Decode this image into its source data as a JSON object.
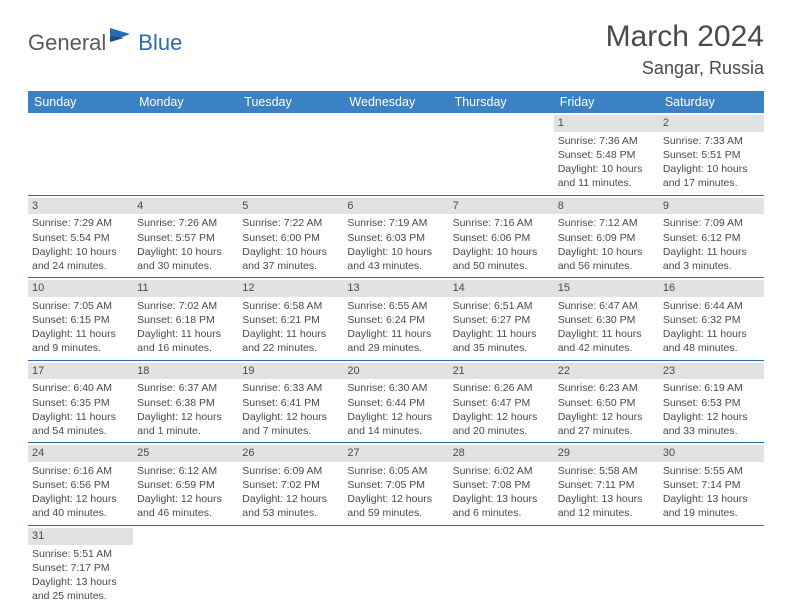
{
  "logo": {
    "general": "General",
    "blue": "Blue"
  },
  "title": "March 2024",
  "location": "Sangar, Russia",
  "colors": {
    "header_bg": "#3b82c4",
    "header_fg": "#ffffff",
    "day_bg": "#e2e2e2",
    "row_border": "#2b6cb0",
    "text": "#4a4a4a",
    "logo_gray": "#5a5a5a",
    "logo_blue": "#2b6cb0"
  },
  "weekdays": [
    "Sunday",
    "Monday",
    "Tuesday",
    "Wednesday",
    "Thursday",
    "Friday",
    "Saturday"
  ],
  "weeks": [
    [
      null,
      null,
      null,
      null,
      null,
      {
        "d": "1",
        "sr": "Sunrise: 7:36 AM",
        "ss": "Sunset: 5:48 PM",
        "dl": "Daylight: 10 hours and 11 minutes."
      },
      {
        "d": "2",
        "sr": "Sunrise: 7:33 AM",
        "ss": "Sunset: 5:51 PM",
        "dl": "Daylight: 10 hours and 17 minutes."
      }
    ],
    [
      {
        "d": "3",
        "sr": "Sunrise: 7:29 AM",
        "ss": "Sunset: 5:54 PM",
        "dl": "Daylight: 10 hours and 24 minutes."
      },
      {
        "d": "4",
        "sr": "Sunrise: 7:26 AM",
        "ss": "Sunset: 5:57 PM",
        "dl": "Daylight: 10 hours and 30 minutes."
      },
      {
        "d": "5",
        "sr": "Sunrise: 7:22 AM",
        "ss": "Sunset: 6:00 PM",
        "dl": "Daylight: 10 hours and 37 minutes."
      },
      {
        "d": "6",
        "sr": "Sunrise: 7:19 AM",
        "ss": "Sunset: 6:03 PM",
        "dl": "Daylight: 10 hours and 43 minutes."
      },
      {
        "d": "7",
        "sr": "Sunrise: 7:16 AM",
        "ss": "Sunset: 6:06 PM",
        "dl": "Daylight: 10 hours and 50 minutes."
      },
      {
        "d": "8",
        "sr": "Sunrise: 7:12 AM",
        "ss": "Sunset: 6:09 PM",
        "dl": "Daylight: 10 hours and 56 minutes."
      },
      {
        "d": "9",
        "sr": "Sunrise: 7:09 AM",
        "ss": "Sunset: 6:12 PM",
        "dl": "Daylight: 11 hours and 3 minutes."
      }
    ],
    [
      {
        "d": "10",
        "sr": "Sunrise: 7:05 AM",
        "ss": "Sunset: 6:15 PM",
        "dl": "Daylight: 11 hours and 9 minutes."
      },
      {
        "d": "11",
        "sr": "Sunrise: 7:02 AM",
        "ss": "Sunset: 6:18 PM",
        "dl": "Daylight: 11 hours and 16 minutes."
      },
      {
        "d": "12",
        "sr": "Sunrise: 6:58 AM",
        "ss": "Sunset: 6:21 PM",
        "dl": "Daylight: 11 hours and 22 minutes."
      },
      {
        "d": "13",
        "sr": "Sunrise: 6:55 AM",
        "ss": "Sunset: 6:24 PM",
        "dl": "Daylight: 11 hours and 29 minutes."
      },
      {
        "d": "14",
        "sr": "Sunrise: 6:51 AM",
        "ss": "Sunset: 6:27 PM",
        "dl": "Daylight: 11 hours and 35 minutes."
      },
      {
        "d": "15",
        "sr": "Sunrise: 6:47 AM",
        "ss": "Sunset: 6:30 PM",
        "dl": "Daylight: 11 hours and 42 minutes."
      },
      {
        "d": "16",
        "sr": "Sunrise: 6:44 AM",
        "ss": "Sunset: 6:32 PM",
        "dl": "Daylight: 11 hours and 48 minutes."
      }
    ],
    [
      {
        "d": "17",
        "sr": "Sunrise: 6:40 AM",
        "ss": "Sunset: 6:35 PM",
        "dl": "Daylight: 11 hours and 54 minutes."
      },
      {
        "d": "18",
        "sr": "Sunrise: 6:37 AM",
        "ss": "Sunset: 6:38 PM",
        "dl": "Daylight: 12 hours and 1 minute."
      },
      {
        "d": "19",
        "sr": "Sunrise: 6:33 AM",
        "ss": "Sunset: 6:41 PM",
        "dl": "Daylight: 12 hours and 7 minutes."
      },
      {
        "d": "20",
        "sr": "Sunrise: 6:30 AM",
        "ss": "Sunset: 6:44 PM",
        "dl": "Daylight: 12 hours and 14 minutes."
      },
      {
        "d": "21",
        "sr": "Sunrise: 6:26 AM",
        "ss": "Sunset: 6:47 PM",
        "dl": "Daylight: 12 hours and 20 minutes."
      },
      {
        "d": "22",
        "sr": "Sunrise: 6:23 AM",
        "ss": "Sunset: 6:50 PM",
        "dl": "Daylight: 12 hours and 27 minutes."
      },
      {
        "d": "23",
        "sr": "Sunrise: 6:19 AM",
        "ss": "Sunset: 6:53 PM",
        "dl": "Daylight: 12 hours and 33 minutes."
      }
    ],
    [
      {
        "d": "24",
        "sr": "Sunrise: 6:16 AM",
        "ss": "Sunset: 6:56 PM",
        "dl": "Daylight: 12 hours and 40 minutes."
      },
      {
        "d": "25",
        "sr": "Sunrise: 6:12 AM",
        "ss": "Sunset: 6:59 PM",
        "dl": "Daylight: 12 hours and 46 minutes."
      },
      {
        "d": "26",
        "sr": "Sunrise: 6:09 AM",
        "ss": "Sunset: 7:02 PM",
        "dl": "Daylight: 12 hours and 53 minutes."
      },
      {
        "d": "27",
        "sr": "Sunrise: 6:05 AM",
        "ss": "Sunset: 7:05 PM",
        "dl": "Daylight: 12 hours and 59 minutes."
      },
      {
        "d": "28",
        "sr": "Sunrise: 6:02 AM",
        "ss": "Sunset: 7:08 PM",
        "dl": "Daylight: 13 hours and 6 minutes."
      },
      {
        "d": "29",
        "sr": "Sunrise: 5:58 AM",
        "ss": "Sunset: 7:11 PM",
        "dl": "Daylight: 13 hours and 12 minutes."
      },
      {
        "d": "30",
        "sr": "Sunrise: 5:55 AM",
        "ss": "Sunset: 7:14 PM",
        "dl": "Daylight: 13 hours and 19 minutes."
      }
    ],
    [
      {
        "d": "31",
        "sr": "Sunrise: 5:51 AM",
        "ss": "Sunset: 7:17 PM",
        "dl": "Daylight: 13 hours and 25 minutes."
      },
      null,
      null,
      null,
      null,
      null,
      null
    ]
  ]
}
